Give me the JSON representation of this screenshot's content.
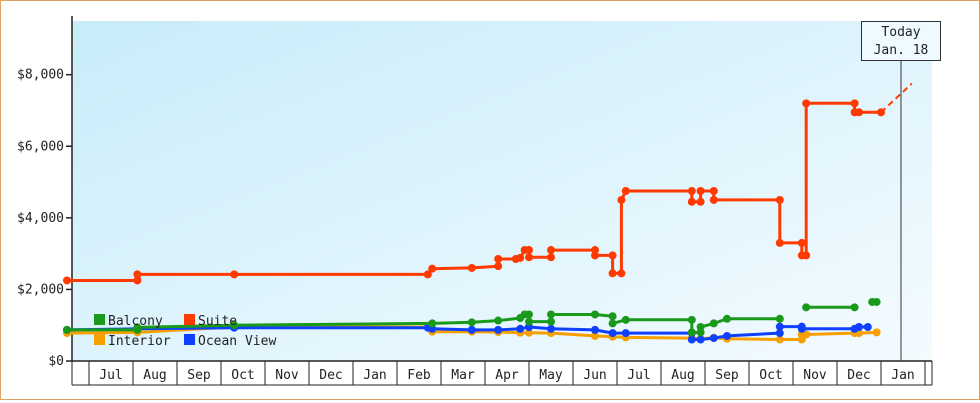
{
  "today": {
    "line1": "Today",
    "line2": "Jan. 18"
  },
  "colors": {
    "Balcony": "#1a9a1a",
    "Suite": "#ff3a00",
    "Interior": "#f5a000",
    "Ocean View": "#1040ff"
  },
  "chart_data": {
    "type": "line",
    "title": "",
    "xlabel": "",
    "ylabel": "",
    "ylim": [
      0,
      9500
    ],
    "yticks": [
      "$0",
      "$2,000",
      "$4,000",
      "$6,000",
      "$8,000"
    ],
    "ytick_values": [
      0,
      2000,
      4000,
      6000,
      8000
    ],
    "xticks": [
      "Jul",
      "Aug",
      "Sep",
      "Oct",
      "Nov",
      "Dec",
      "Jan",
      "Feb",
      "Mar",
      "Apr",
      "May",
      "Jun",
      "Jul",
      "Aug",
      "Sep",
      "Oct",
      "Nov",
      "Dec",
      "Jan"
    ],
    "legend": [
      "Balcony",
      "Suite",
      "Interior",
      "Ocean View"
    ],
    "legend_position": "bottom-left",
    "series": [
      {
        "name": "Suite",
        "dashed_projection": [
          [
            18.0,
            6950
          ],
          [
            18.7,
            7750
          ]
        ],
        "points": [
          [
            -0.5,
            2250
          ],
          [
            1.1,
            2250
          ],
          [
            1.1,
            2420
          ],
          [
            3.3,
            2420
          ],
          [
            7.7,
            2420
          ],
          [
            7.8,
            2580
          ],
          [
            8.7,
            2600
          ],
          [
            9.3,
            2650
          ],
          [
            9.3,
            2850
          ],
          [
            9.7,
            2850
          ],
          [
            9.8,
            2880
          ],
          [
            9.9,
            3100
          ],
          [
            10.0,
            3100
          ],
          [
            10.0,
            2900
          ],
          [
            10.5,
            2900
          ],
          [
            10.5,
            3100
          ],
          [
            11.5,
            3100
          ],
          [
            11.5,
            2950
          ],
          [
            11.9,
            2950
          ],
          [
            11.9,
            2450
          ],
          [
            12.1,
            2450
          ],
          [
            12.1,
            4500
          ],
          [
            12.2,
            4750
          ],
          [
            13.7,
            4750
          ],
          [
            13.7,
            4450
          ],
          [
            13.9,
            4450
          ],
          [
            13.9,
            4750
          ],
          [
            14.2,
            4750
          ],
          [
            14.2,
            4500
          ],
          [
            15.7,
            4500
          ],
          [
            15.7,
            3300
          ],
          [
            16.2,
            3300
          ],
          [
            16.2,
            2950
          ],
          [
            16.3,
            2950
          ],
          [
            16.3,
            7200
          ],
          [
            17.4,
            7200
          ],
          [
            17.4,
            6950
          ],
          [
            17.5,
            6950
          ],
          [
            18.0,
            6950
          ]
        ]
      },
      {
        "name": "Balcony",
        "points": [
          [
            -0.5,
            870
          ],
          [
            1.1,
            870
          ],
          [
            1.1,
            940
          ],
          [
            3.3,
            1000
          ],
          [
            7.8,
            1050
          ],
          [
            8.7,
            1080
          ],
          [
            9.3,
            1130
          ],
          [
            9.8,
            1200
          ],
          [
            9.9,
            1300
          ],
          [
            10.0,
            1300
          ],
          [
            10.0,
            1100
          ],
          [
            10.5,
            1100
          ],
          [
            10.5,
            1300
          ],
          [
            11.5,
            1300
          ],
          [
            11.9,
            1250
          ],
          [
            11.9,
            1050
          ],
          [
            12.2,
            1150
          ],
          [
            13.7,
            1150
          ],
          [
            13.7,
            800
          ],
          [
            13.9,
            800
          ],
          [
            13.9,
            950
          ],
          [
            14.2,
            1050
          ],
          [
            14.5,
            1180
          ],
          [
            15.7,
            1180
          ]
        ],
        "points_b": [
          [
            16.3,
            1500
          ],
          [
            17.4,
            1500
          ]
        ],
        "points_c": [
          [
            17.8,
            1650
          ],
          [
            17.9,
            1650
          ]
        ]
      },
      {
        "name": "Interior",
        "points": [
          [
            -0.5,
            780
          ],
          [
            1.1,
            800
          ],
          [
            3.3,
            950
          ],
          [
            7.7,
            950
          ],
          [
            7.8,
            820
          ],
          [
            8.7,
            820
          ],
          [
            9.3,
            810
          ],
          [
            9.8,
            790
          ],
          [
            10.0,
            790
          ],
          [
            10.5,
            780
          ],
          [
            11.5,
            700
          ],
          [
            11.9,
            680
          ],
          [
            12.2,
            660
          ],
          [
            13.7,
            640
          ],
          [
            13.9,
            620
          ],
          [
            14.2,
            650
          ],
          [
            14.5,
            620
          ],
          [
            15.7,
            600
          ],
          [
            16.2,
            600
          ],
          [
            16.2,
            740
          ],
          [
            16.3,
            740
          ],
          [
            17.4,
            780
          ],
          [
            17.5,
            780
          ],
          [
            17.9,
            800
          ]
        ]
      },
      {
        "name": "Ocean View",
        "points": [
          [
            -0.5,
            870
          ],
          [
            1.1,
            900
          ],
          [
            3.3,
            930
          ],
          [
            7.7,
            930
          ],
          [
            7.8,
            900
          ],
          [
            8.7,
            870
          ],
          [
            9.3,
            870
          ],
          [
            9.8,
            900
          ],
          [
            10.0,
            950
          ],
          [
            10.5,
            900
          ],
          [
            11.5,
            870
          ],
          [
            11.9,
            780
          ],
          [
            12.2,
            780
          ],
          [
            13.7,
            780
          ],
          [
            13.7,
            600
          ],
          [
            13.9,
            600
          ],
          [
            14.2,
            640
          ],
          [
            14.5,
            700
          ],
          [
            15.7,
            780
          ],
          [
            15.7,
            960
          ],
          [
            16.2,
            960
          ],
          [
            16.2,
            900
          ],
          [
            17.4,
            900
          ],
          [
            17.5,
            950
          ],
          [
            17.7,
            950
          ]
        ]
      }
    ]
  }
}
